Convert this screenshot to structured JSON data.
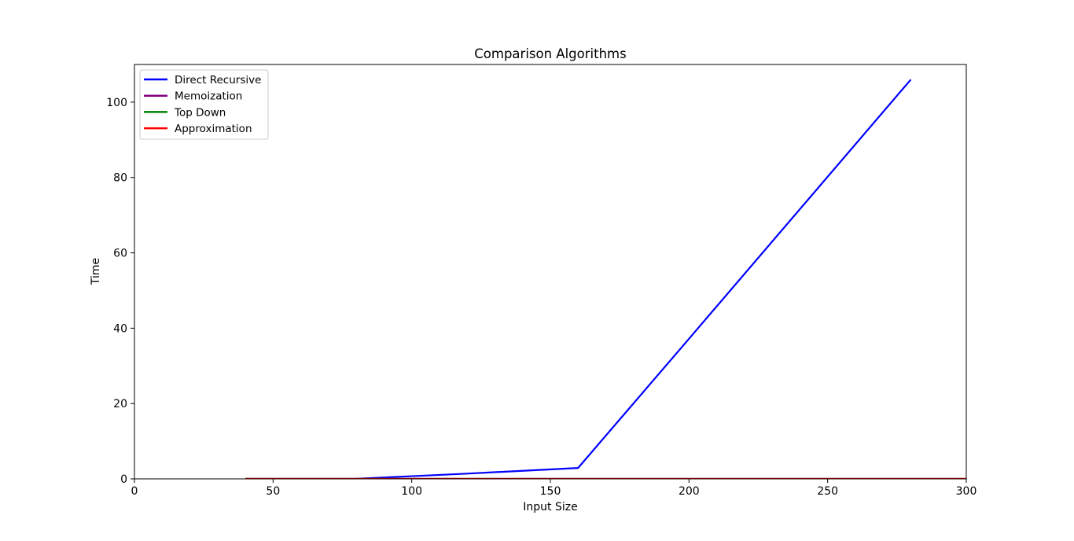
{
  "chart_data": {
    "type": "line",
    "title": "Comparison Algorithms",
    "xlabel": "Input Size",
    "ylabel": "Time",
    "xlim": [
      0,
      300
    ],
    "ylim": [
      0,
      110
    ],
    "xticks": [
      0,
      50,
      100,
      150,
      200,
      250,
      300
    ],
    "yticks": [
      0,
      20,
      40,
      60,
      80,
      100
    ],
    "grid": false,
    "legend_position": "top-left",
    "series": [
      {
        "name": "Direct Recursive",
        "color": "#0000ff",
        "x": [
          40,
          80,
          120,
          160,
          200,
          240,
          280
        ],
        "y": [
          0.0,
          0.02,
          1.4,
          2.9,
          37.2,
          71.6,
          106.0
        ]
      },
      {
        "name": "Memoization",
        "color": "#800080",
        "x": [
          40,
          80,
          120,
          160,
          200,
          240,
          280,
          320
        ],
        "y": [
          0,
          0,
          0,
          0,
          0,
          0,
          0,
          0
        ]
      },
      {
        "name": "Top Down",
        "color": "#008000",
        "x": [
          40,
          80,
          120,
          160,
          200,
          240,
          280,
          320
        ],
        "y": [
          0,
          0,
          0,
          0,
          0,
          0,
          0,
          0
        ]
      },
      {
        "name": "Approximation",
        "color": "#ff0000",
        "x": [
          40,
          80,
          120,
          160,
          200,
          240,
          280,
          320
        ],
        "y": [
          0,
          0,
          0,
          0,
          0,
          0,
          0,
          0
        ]
      }
    ]
  }
}
